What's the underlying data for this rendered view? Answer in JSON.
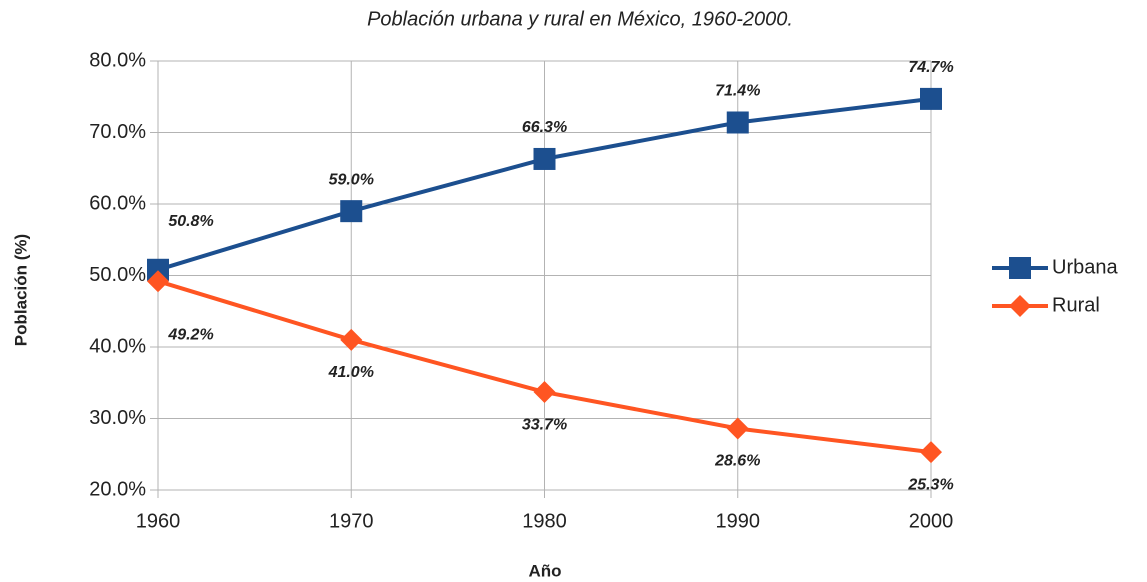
{
  "chart_data": {
    "type": "line",
    "title": "Población urbana y rural en México, 1960-2000.",
    "xlabel": "Año",
    "ylabel": "Población (%)",
    "x": [
      1960,
      1970,
      1980,
      1990,
      2000
    ],
    "xlim": [
      1960,
      2000
    ],
    "xticks": [
      1960,
      1970,
      1980,
      1990,
      2000
    ],
    "ylim": [
      20,
      80
    ],
    "yticks": [
      {
        "value": 20,
        "label": "20.0%"
      },
      {
        "value": 30,
        "label": "30.0%"
      },
      {
        "value": 40,
        "label": "40.0%"
      },
      {
        "value": 50,
        "label": "50.0%"
      },
      {
        "value": 60,
        "label": "60.0%"
      },
      {
        "value": 70,
        "label": "70.0%"
      },
      {
        "value": 80,
        "label": "80.0%"
      }
    ],
    "grid": true,
    "legend": "right",
    "series": [
      {
        "name": "Urbana",
        "color": "#1c4f8f",
        "marker": "square",
        "values": [
          50.8,
          59.0,
          66.3,
          71.4,
          74.7
        ],
        "value_labels": [
          "50.8%",
          "59.0%",
          "66.3%",
          "71.4%",
          "74.7%"
        ]
      },
      {
        "name": "Rural",
        "color": "#ff5522",
        "marker": "diamond",
        "values": [
          49.2,
          41.0,
          33.7,
          28.6,
          25.3
        ],
        "value_labels": [
          "49.2%",
          "41.0%",
          "33.7%",
          "28.6%",
          "25.3%"
        ]
      }
    ]
  }
}
